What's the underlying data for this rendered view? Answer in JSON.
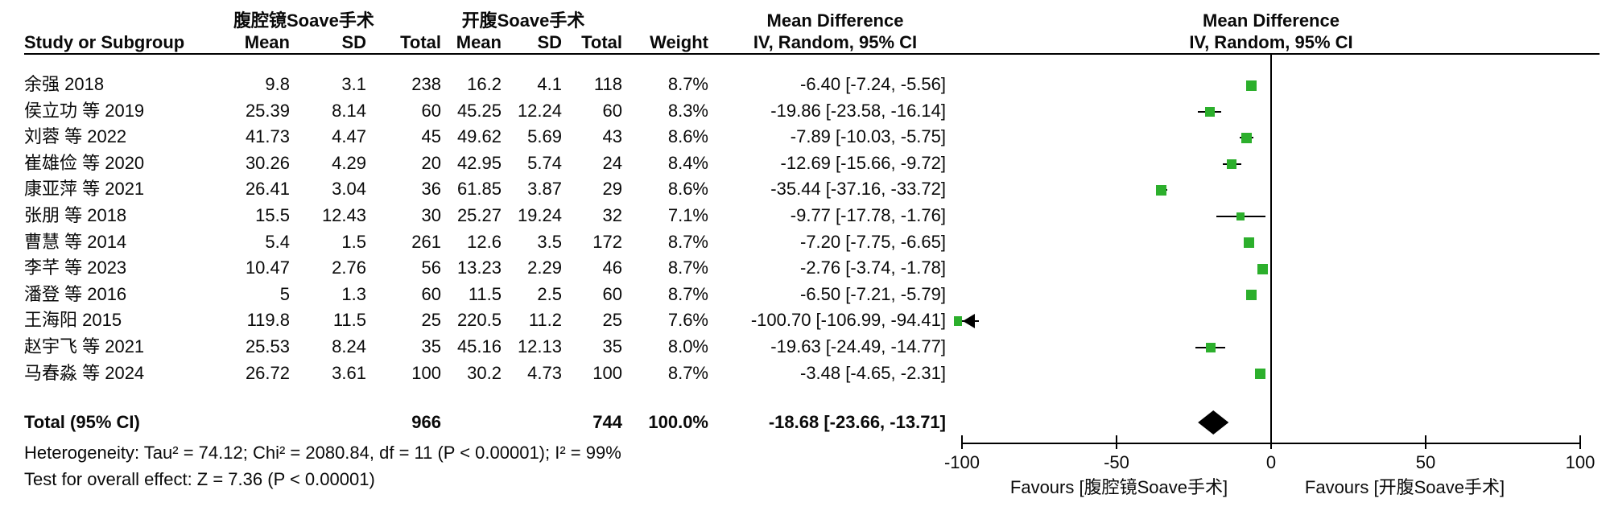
{
  "header": {
    "group1": "腹腔镜Soave手术",
    "group2": "开腹Soave手术",
    "col_study": "Study or Subgroup",
    "cols": {
      "mean": "Mean",
      "sd": "SD",
      "total": "Total",
      "weight": "Weight"
    },
    "effect_title": "Mean Difference",
    "effect_sub": "IV, Random, 95% CI"
  },
  "chart_data": {
    "type": "forest",
    "effect_measure": "Mean Difference, IV, Random, 95% CI",
    "axis": {
      "min": -100,
      "max": 100,
      "ticks": [
        -100,
        -50,
        0,
        50,
        100
      ]
    },
    "favours_left": "Favours [腹腔镜Soave手术]",
    "favours_right": "Favours [开腹Soave手术]",
    "marker_color": "#2CAF2C",
    "studies": [
      {
        "name": "余强 2018",
        "mean1": "9.8",
        "sd1": "3.1",
        "total1": "238",
        "mean2": "16.2",
        "sd2": "4.1",
        "total2": "118",
        "weight": "8.7%",
        "md": -6.4,
        "lo": -7.24,
        "hi": -5.56,
        "ci_text": "-6.40 [-7.24, -5.56]"
      },
      {
        "name": "侯立功 等 2019",
        "mean1": "25.39",
        "sd1": "8.14",
        "total1": "60",
        "mean2": "45.25",
        "sd2": "12.24",
        "total2": "60",
        "weight": "8.3%",
        "md": -19.86,
        "lo": -23.58,
        "hi": -16.14,
        "ci_text": "-19.86 [-23.58, -16.14]"
      },
      {
        "name": "刘蓉 等 2022",
        "mean1": "41.73",
        "sd1": "4.47",
        "total1": "45",
        "mean2": "49.62",
        "sd2": "5.69",
        "total2": "43",
        "weight": "8.6%",
        "md": -7.89,
        "lo": -10.03,
        "hi": -5.75,
        "ci_text": "-7.89 [-10.03, -5.75]"
      },
      {
        "name": "崔雄俭 等 2020",
        "mean1": "30.26",
        "sd1": "4.29",
        "total1": "20",
        "mean2": "42.95",
        "sd2": "5.74",
        "total2": "24",
        "weight": "8.4%",
        "md": -12.69,
        "lo": -15.66,
        "hi": -9.72,
        "ci_text": "-12.69 [-15.66, -9.72]"
      },
      {
        "name": "康亚萍 等 2021",
        "mean1": "26.41",
        "sd1": "3.04",
        "total1": "36",
        "mean2": "61.85",
        "sd2": "3.87",
        "total2": "29",
        "weight": "8.6%",
        "md": -35.44,
        "lo": -37.16,
        "hi": -33.72,
        "ci_text": "-35.44 [-37.16, -33.72]"
      },
      {
        "name": "张朋 等 2018",
        "mean1": "15.5",
        "sd1": "12.43",
        "total1": "30",
        "mean2": "25.27",
        "sd2": "19.24",
        "total2": "32",
        "weight": "7.1%",
        "md": -9.77,
        "lo": -17.78,
        "hi": -1.76,
        "ci_text": "-9.77 [-17.78, -1.76]"
      },
      {
        "name": "曹慧 等 2014",
        "mean1": "5.4",
        "sd1": "1.5",
        "total1": "261",
        "mean2": "12.6",
        "sd2": "3.5",
        "total2": "172",
        "weight": "8.7%",
        "md": -7.2,
        "lo": -7.75,
        "hi": -6.65,
        "ci_text": "-7.20 [-7.75, -6.65]"
      },
      {
        "name": "李芊 等 2023",
        "mean1": "10.47",
        "sd1": "2.76",
        "total1": "56",
        "mean2": "13.23",
        "sd2": "2.29",
        "total2": "46",
        "weight": "8.7%",
        "md": -2.76,
        "lo": -3.74,
        "hi": -1.78,
        "ci_text": "-2.76 [-3.74, -1.78]"
      },
      {
        "name": "潘登 等 2016",
        "mean1": "5",
        "sd1": "1.3",
        "total1": "60",
        "mean2": "11.5",
        "sd2": "2.5",
        "total2": "60",
        "weight": "8.7%",
        "md": -6.5,
        "lo": -7.21,
        "hi": -5.79,
        "ci_text": "-6.50 [-7.21, -5.79]"
      },
      {
        "name": "王海阳 2015",
        "mean1": "119.8",
        "sd1": "11.5",
        "total1": "25",
        "mean2": "220.5",
        "sd2": "11.2",
        "total2": "25",
        "weight": "7.6%",
        "md": -100.7,
        "lo": -106.99,
        "hi": -94.41,
        "ci_text": "-100.70 [-106.99, -94.41]"
      },
      {
        "name": "赵宇飞 等 2021",
        "mean1": "25.53",
        "sd1": "8.24",
        "total1": "35",
        "mean2": "45.16",
        "sd2": "12.13",
        "total2": "35",
        "weight": "8.0%",
        "md": -19.63,
        "lo": -24.49,
        "hi": -14.77,
        "ci_text": "-19.63 [-24.49, -14.77]"
      },
      {
        "name": "马春淼 等 2024",
        "mean1": "26.72",
        "sd1": "3.61",
        "total1": "100",
        "mean2": "30.2",
        "sd2": "4.73",
        "total2": "100",
        "weight": "8.7%",
        "md": -3.48,
        "lo": -4.65,
        "hi": -2.31,
        "ci_text": "-3.48 [-4.65, -2.31]"
      }
    ],
    "total": {
      "label": "Total (95% CI)",
      "total1": "966",
      "total2": "744",
      "weight": "100.0%",
      "md": -18.68,
      "lo": -23.66,
      "hi": -13.71,
      "ci_text": "-18.68 [-23.66, -13.71]"
    }
  },
  "footer": {
    "heterogeneity": "Heterogeneity: Tau² = 74.12; Chi² = 2080.84, df = 11 (P < 0.00001); I² = 99%",
    "overall": "Test for overall effect: Z = 7.36 (P < 0.00001)"
  }
}
